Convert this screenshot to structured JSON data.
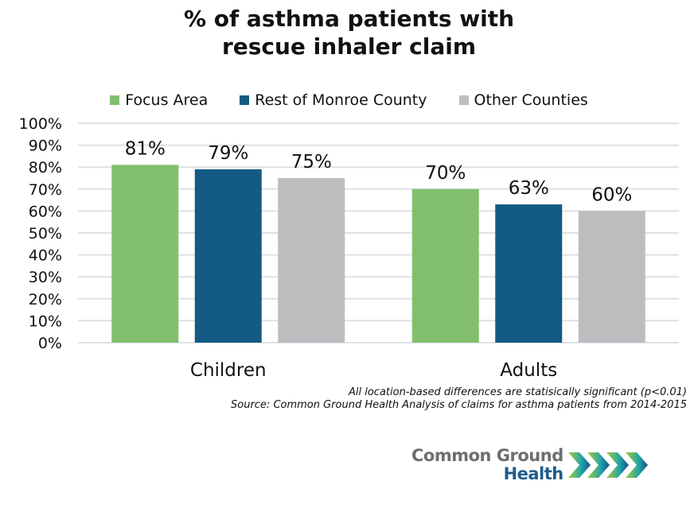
{
  "chart_data": {
    "type": "bar",
    "title_lines": [
      "% of asthma patients with",
      "rescue inhaler claim"
    ],
    "categories": [
      "Children",
      "Adults"
    ],
    "series": [
      {
        "name": "Focus Area",
        "color": "#82bf6d",
        "values": [
          81,
          70
        ],
        "labels": [
          "81%",
          "70%"
        ]
      },
      {
        "name": "Rest of Monroe County",
        "color": "#135b84",
        "values": [
          79,
          63
        ],
        "labels": [
          "79%",
          "63%"
        ]
      },
      {
        "name": "Other Counties",
        "color": "#bcbdbf",
        "values": [
          75,
          60
        ],
        "labels": [
          "75%",
          "60%"
        ]
      }
    ],
    "ylim": [
      0,
      100
    ],
    "yticks": [
      "0%",
      "10%",
      "20%",
      "30%",
      "40%",
      "50%",
      "60%",
      "70%",
      "80%",
      "90%",
      "100%"
    ],
    "xlabel": "",
    "ylabel": "",
    "grid": true,
    "legend_position": "top"
  },
  "notes": {
    "significance": "All location-based differences are statisically significant (p<0.01)",
    "source": "Source: Common Ground Health Analysis of claims for asthma patients from 2014-2015"
  },
  "logo": {
    "line1": "Common Ground",
    "line2": "Health",
    "icon": "chevrons-icon"
  }
}
